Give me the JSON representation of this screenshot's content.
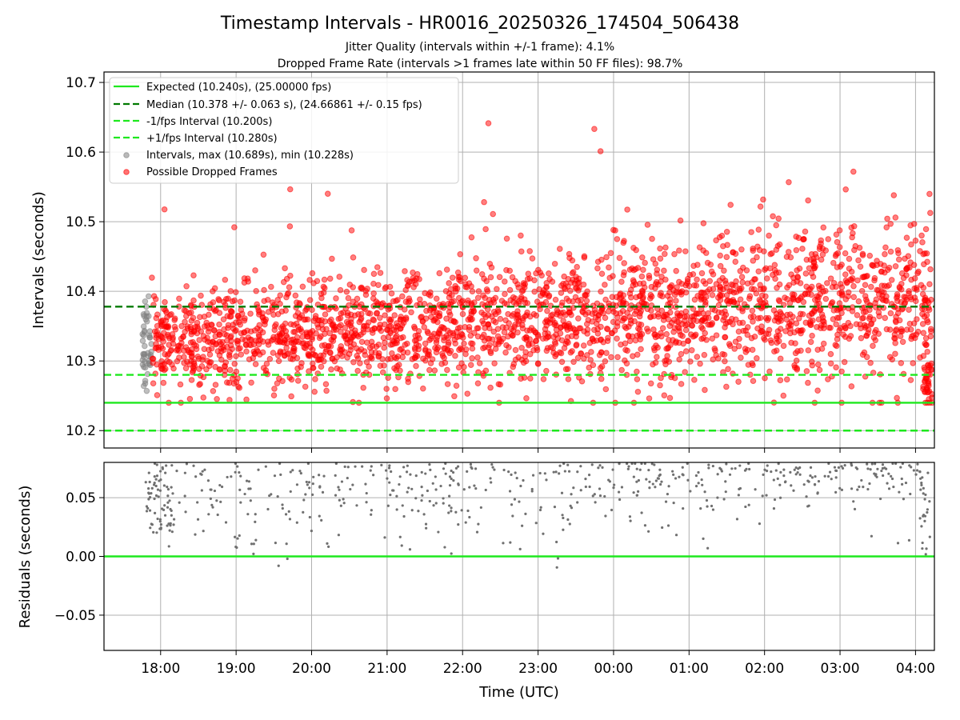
{
  "chart_data": [
    {
      "type": "scatter",
      "title": "Timestamp Intervals - HR0016_20250326_174504_506438",
      "subtitle_lines": [
        "Jitter Quality (intervals within +/-1 frame): 4.1%",
        "Dropped Frame Rate (intervals >1 frames late within 50 FF files): 98.7%"
      ],
      "ylabel": "Intervals (seconds)",
      "ylim": [
        10.175,
        10.715
      ],
      "yticks": [
        {
          "value": 10.2,
          "label": "10.2"
        },
        {
          "value": 10.3,
          "label": "10.3"
        },
        {
          "value": 10.4,
          "label": "10.4"
        },
        {
          "value": 10.5,
          "label": "10.5"
        },
        {
          "value": 10.6,
          "label": "10.6"
        },
        {
          "value": 10.7,
          "label": "10.7"
        }
      ],
      "grid": true,
      "legend_placement": "upper-left",
      "hlines": [
        {
          "name": "Expected (10.240s), (25.00000 fps)",
          "y": 10.24,
          "color": "#1ee81e",
          "style": "solid"
        },
        {
          "name": "Median (10.378 +/- 0.063 s), (24.66861 +/- 0.15 fps)",
          "y": 10.378,
          "color": "#007a00",
          "style": "dashed"
        },
        {
          "name": "-1/fps Interval (10.200s)",
          "y": 10.2,
          "color": "#1ee81e",
          "style": "dashed"
        },
        {
          "name": "+1/fps Interval (10.280s)",
          "y": 10.28,
          "color": "#1ee81e",
          "style": "dashed"
        }
      ],
      "scatter_series": [
        {
          "name": "Intervals, max (10.689s), min (10.228s)",
          "color": "#808080",
          "max": 10.689,
          "min": 10.228
        },
        {
          "name": "Possible Dropped Frames",
          "color": "#ff0000",
          "max": 10.689,
          "min": 10.24
        }
      ]
    },
    {
      "type": "scatter",
      "ylabel": "Residuals (seconds)",
      "ylim": [
        -0.08,
        0.08
      ],
      "yticks": [
        {
          "value": -0.05,
          "label": "−0.05"
        },
        {
          "value": 0.0,
          "label": "0.00"
        },
        {
          "value": 0.05,
          "label": "0.05"
        }
      ],
      "xlabel": "Time (UTC)",
      "grid": true,
      "zero_line_color": "#1ee81e",
      "point_color": "#707070"
    }
  ],
  "x_axis": {
    "range_hours": [
      17.25,
      28.25
    ],
    "ticks": [
      {
        "value": 18,
        "label": "18:00"
      },
      {
        "value": 19,
        "label": "19:00"
      },
      {
        "value": 20,
        "label": "20:00"
      },
      {
        "value": 21,
        "label": "21:00"
      },
      {
        "value": 22,
        "label": "22:00"
      },
      {
        "value": 23,
        "label": "23:00"
      },
      {
        "value": 24,
        "label": "00:00"
      },
      {
        "value": 25,
        "label": "01:00"
      },
      {
        "value": 26,
        "label": "02:00"
      },
      {
        "value": 27,
        "label": "03:00"
      },
      {
        "value": 28,
        "label": "04:00"
      }
    ],
    "data_start_hour": 17.76,
    "data_end_hour": 28.22
  }
}
